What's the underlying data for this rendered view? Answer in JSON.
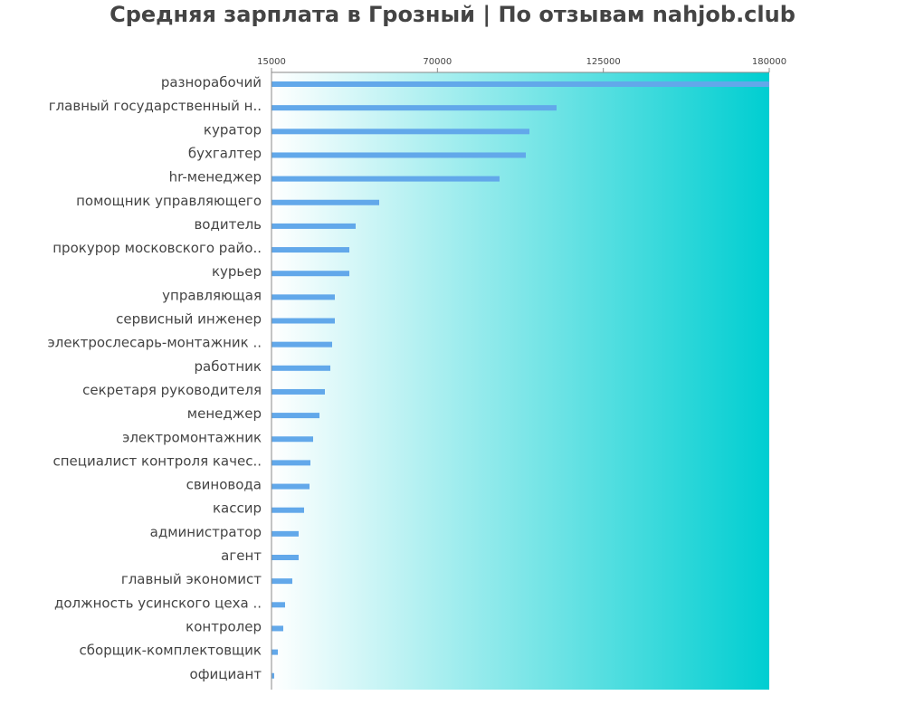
{
  "chart_data": {
    "type": "bar",
    "orientation": "horizontal",
    "title": "Средняя зарплата в Грозный | По отзывам nahjob.club",
    "xlim": [
      15000,
      180000
    ],
    "xticks": [
      15000,
      70000,
      125000,
      180000
    ],
    "categories": [
      "разнорабочий",
      "главный государственный н..",
      "куратор",
      "бухгалтер",
      "hr-менеджер",
      "помощник управляющего",
      "водитель",
      "прокурор московского райо..",
      "курьер",
      "управляющая",
      "сервисный инженер",
      "электрослесарь-монтажник ..",
      "работник",
      "секретаря руководителя",
      "менеджер",
      "электромонтажник",
      "специалист контроля качес..",
      "свиновода",
      "кассир",
      "администратор",
      "агент",
      "главный экономист",
      "должность усинского цеха ..",
      "контролер",
      "сборщик-комплектовщик",
      "официант"
    ],
    "values": [
      180000,
      109500,
      100500,
      99300,
      90600,
      50700,
      42900,
      40800,
      40800,
      36000,
      36000,
      35100,
      34500,
      32700,
      30900,
      28800,
      27900,
      27600,
      25800,
      24000,
      24000,
      21900,
      19500,
      18900,
      17100,
      15900
    ],
    "grid": false,
    "colors": {
      "bar": "#62a8ea",
      "background_start": "#ffffff",
      "background_end": "#00ced1",
      "text": "#444444"
    }
  }
}
